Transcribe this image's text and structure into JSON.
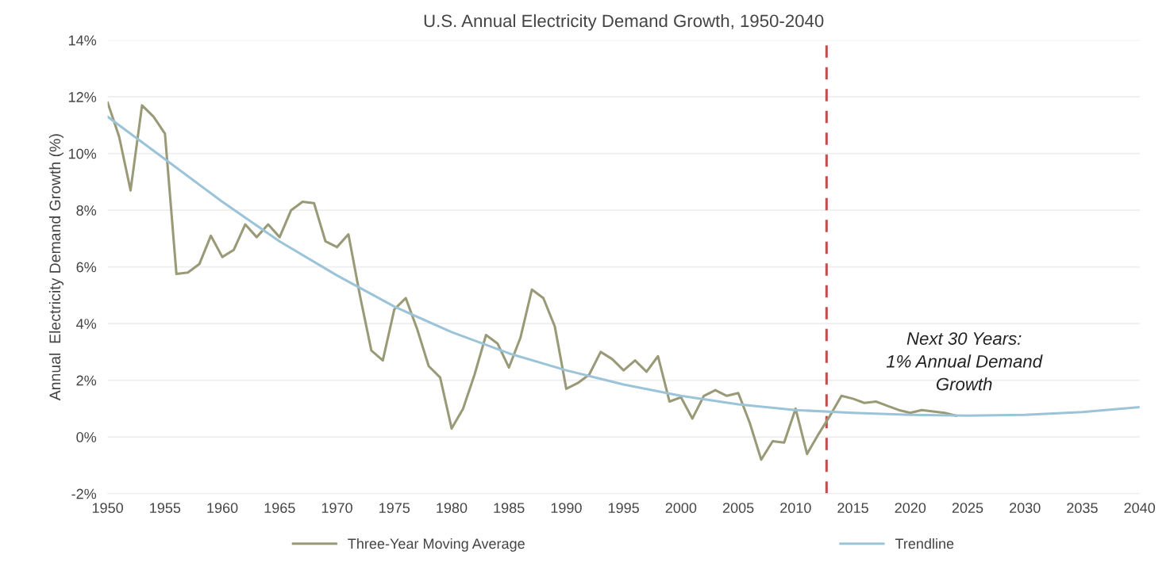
{
  "chart_data": {
    "type": "line",
    "title": "U.S. Annual Electricity Demand Growth, 1950-2040",
    "ylabel": "Annual  Electricity Demand Growth (%)",
    "xlim": [
      1950,
      2040
    ],
    "xticks": [
      1950,
      1955,
      1960,
      1965,
      1970,
      1975,
      1980,
      1985,
      1990,
      1995,
      2000,
      2005,
      2010,
      2015,
      2020,
      2025,
      2030,
      2035,
      2040
    ],
    "ylim": [
      -2,
      14
    ],
    "yticks": [
      {
        "value": -2,
        "label": "-2%"
      },
      {
        "value": 0,
        "label": "0%"
      },
      {
        "value": 2,
        "label": "2%"
      },
      {
        "value": 4,
        "label": "4%"
      },
      {
        "value": 6,
        "label": "6%"
      },
      {
        "value": 8,
        "label": "8%"
      },
      {
        "value": 10,
        "label": "10%"
      },
      {
        "value": 12,
        "label": "12%"
      },
      {
        "value": 14,
        "label": "14%"
      }
    ],
    "grid": "y",
    "legend": "bottom",
    "marker": "none",
    "line_style": "solid",
    "series": [
      {
        "name": "Three-Year Moving Average",
        "color": "#9a9a78",
        "x": [
          1950,
          1951,
          1952,
          1953,
          1954,
          1955,
          1956,
          1957,
          1958,
          1959,
          1960,
          1961,
          1962,
          1963,
          1964,
          1965,
          1966,
          1967,
          1968,
          1969,
          1970,
          1971,
          1972,
          1973,
          1974,
          1975,
          1976,
          1977,
          1978,
          1979,
          1980,
          1981,
          1982,
          1983,
          1984,
          1985,
          1986,
          1987,
          1988,
          1989,
          1990,
          1991,
          1992,
          1993,
          1994,
          1995,
          1996,
          1997,
          1998,
          1999,
          2000,
          2001,
          2002,
          2003,
          2004,
          2005,
          2006,
          2007,
          2008,
          2009,
          2010,
          2011,
          2012,
          2013,
          2014,
          2015,
          2016,
          2017,
          2018,
          2019,
          2020,
          2021,
          2022,
          2023,
          2024
        ],
        "values": [
          11.8,
          10.6,
          8.7,
          11.7,
          11.3,
          10.7,
          5.75,
          5.8,
          6.1,
          7.1,
          6.35,
          6.6,
          7.5,
          7.05,
          7.5,
          7.05,
          8.0,
          8.3,
          8.25,
          6.9,
          6.7,
          7.15,
          5.0,
          3.05,
          2.7,
          4.5,
          4.9,
          3.8,
          2.5,
          2.1,
          0.3,
          1.0,
          2.2,
          3.6,
          3.3,
          2.45,
          3.5,
          5.2,
          4.9,
          3.9,
          1.7,
          1.9,
          2.2,
          3.0,
          2.75,
          2.35,
          2.7,
          2.3,
          2.85,
          1.25,
          1.4,
          0.65,
          1.45,
          1.65,
          1.45,
          1.55,
          0.5,
          -0.8,
          -0.15,
          -0.2,
          1.0,
          -0.6,
          0.1,
          0.75,
          1.45,
          1.35,
          1.2,
          1.25,
          1.1,
          0.95,
          0.85,
          0.95,
          0.9,
          0.85,
          0.75
        ]
      },
      {
        "name": "Trendline",
        "color": "#9cc4d8",
        "x": [
          1950,
          1955,
          1960,
          1965,
          1970,
          1975,
          1980,
          1985,
          1990,
          1995,
          2000,
          2005,
          2010,
          2015,
          2020,
          2025,
          2030,
          2035,
          2040
        ],
        "values": [
          11.3,
          9.8,
          8.3,
          6.9,
          5.7,
          4.6,
          3.7,
          2.95,
          2.35,
          1.85,
          1.45,
          1.15,
          0.95,
          0.85,
          0.78,
          0.75,
          0.78,
          0.88,
          1.05
        ]
      }
    ],
    "ref_lines": [
      {
        "axis": "x",
        "value": 2012.7,
        "color": "#c0504d",
        "line_style": "dashed"
      }
    ],
    "annotations": [
      "Next 30 Years:\n1% Annual Demand\nGrowth"
    ]
  }
}
